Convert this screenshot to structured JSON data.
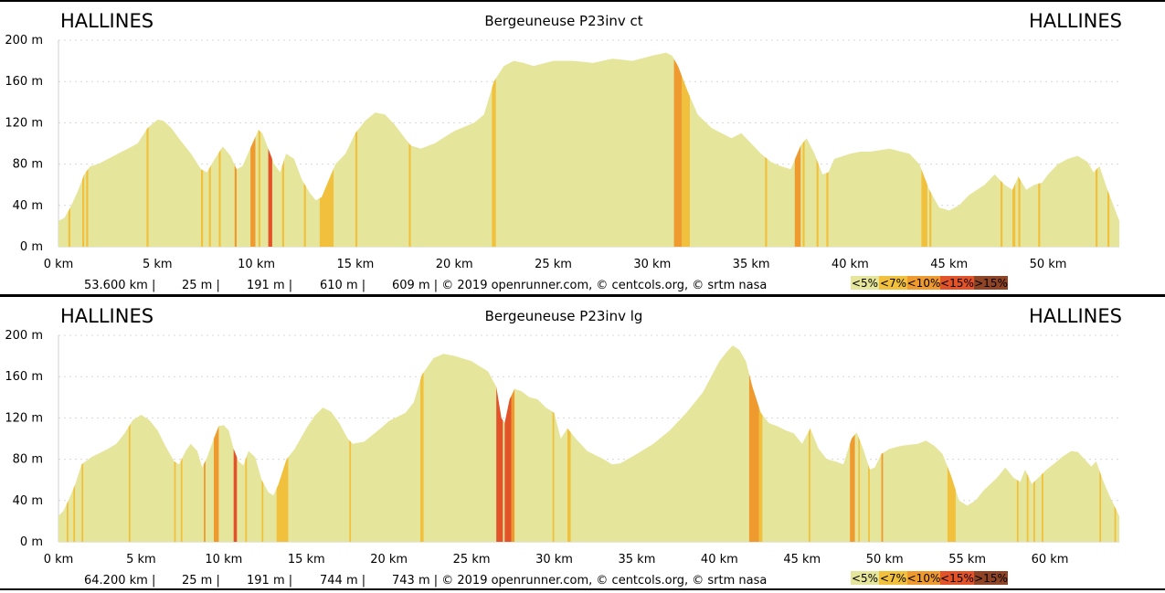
{
  "colors": {
    "lt5": "#e5e59b",
    "lt7": "#f1c13d",
    "lt10": "#ef9a2e",
    "lt15": "#e2532a",
    "gt15": "#8e4425",
    "grid": "#d8d8d8"
  },
  "chart_data": [
    {
      "type": "area",
      "title": "Bergeuneuse P23inv ct",
      "start_label": "HALLINES",
      "end_label": "HALLINES",
      "ylim": [
        0,
        200
      ],
      "xlim": [
        0,
        53.6
      ],
      "y_ticks": [
        "0 m",
        "40 m",
        "80 m",
        "120 m",
        "160 m",
        "200 m"
      ],
      "y_tick_values": [
        0,
        40,
        80,
        120,
        160,
        200
      ],
      "x_ticks": [
        "0 km",
        "5 km",
        "10 km",
        "15 km",
        "20 km",
        "25 km",
        "30 km",
        "35 km",
        "40 km",
        "45 km",
        "50 km"
      ],
      "x_tick_values": [
        0,
        5,
        10,
        15,
        20,
        25,
        30,
        35,
        40,
        45,
        50
      ],
      "grid": true,
      "stats": [
        "53.600 km |",
        "25 m |",
        "191 m |",
        "610 m |",
        "609 m | © 2019 openrunner.com, © centcols.org, © srtm nasa"
      ],
      "legend": [
        "<5%",
        "<7%",
        "<10%",
        "<15%",
        ">15%"
      ],
      "profile": [
        [
          0,
          25
        ],
        [
          0.3,
          28
        ],
        [
          0.6,
          38
        ],
        [
          1.0,
          55
        ],
        [
          1.3,
          70
        ],
        [
          1.6,
          78
        ],
        [
          2.0,
          80
        ],
        [
          2.5,
          85
        ],
        [
          3.0,
          90
        ],
        [
          3.5,
          95
        ],
        [
          4.0,
          100
        ],
        [
          4.5,
          115
        ],
        [
          5.0,
          123
        ],
        [
          5.3,
          122
        ],
        [
          5.7,
          115
        ],
        [
          6.2,
          102
        ],
        [
          6.7,
          90
        ],
        [
          7.2,
          75
        ],
        [
          7.5,
          72
        ],
        [
          7.8,
          82
        ],
        [
          8.3,
          97
        ],
        [
          8.7,
          88
        ],
        [
          9.0,
          75
        ],
        [
          9.3,
          78
        ],
        [
          9.8,
          100
        ],
        [
          10.1,
          113
        ],
        [
          10.3,
          110
        ],
        [
          10.6,
          95
        ],
        [
          10.9,
          80
        ],
        [
          11.2,
          72
        ],
        [
          11.5,
          90
        ],
        [
          11.9,
          85
        ],
        [
          12.3,
          65
        ],
        [
          12.7,
          52
        ],
        [
          13.0,
          45
        ],
        [
          13.3,
          48
        ],
        [
          13.6,
          62
        ],
        [
          14.0,
          80
        ],
        [
          14.5,
          90
        ],
        [
          15.0,
          110
        ],
        [
          15.5,
          122
        ],
        [
          16.0,
          130
        ],
        [
          16.5,
          128
        ],
        [
          17.0,
          118
        ],
        [
          17.5,
          105
        ],
        [
          17.8,
          98
        ],
        [
          18.3,
          95
        ],
        [
          19.0,
          100
        ],
        [
          20.0,
          112
        ],
        [
          21.0,
          120
        ],
        [
          21.5,
          128
        ],
        [
          22.0,
          160
        ],
        [
          22.5,
          175
        ],
        [
          23.0,
          180
        ],
        [
          23.5,
          178
        ],
        [
          24.0,
          175
        ],
        [
          25.0,
          180
        ],
        [
          26.0,
          180
        ],
        [
          27.0,
          178
        ],
        [
          28.0,
          182
        ],
        [
          29.0,
          180
        ],
        [
          30.0,
          185
        ],
        [
          30.7,
          188
        ],
        [
          31.0,
          185
        ],
        [
          31.3,
          175
        ],
        [
          31.8,
          150
        ],
        [
          32.3,
          128
        ],
        [
          33.0,
          115
        ],
        [
          33.5,
          110
        ],
        [
          34.0,
          105
        ],
        [
          34.5,
          110
        ],
        [
          35.0,
          100
        ],
        [
          35.5,
          90
        ],
        [
          36.0,
          82
        ],
        [
          36.5,
          78
        ],
        [
          37.0,
          75
        ],
        [
          37.5,
          98
        ],
        [
          37.8,
          105
        ],
        [
          38.2,
          90
        ],
        [
          38.6,
          70
        ],
        [
          38.9,
          72
        ],
        [
          39.2,
          85
        ],
        [
          40.0,
          90
        ],
        [
          40.5,
          92
        ],
        [
          41.0,
          92
        ],
        [
          42.0,
          95
        ],
        [
          43.0,
          90
        ],
        [
          43.5,
          80
        ],
        [
          44.0,
          55
        ],
        [
          44.5,
          38
        ],
        [
          45.0,
          35
        ],
        [
          45.5,
          40
        ],
        [
          46.0,
          50
        ],
        [
          46.8,
          60
        ],
        [
          47.3,
          70
        ],
        [
          47.8,
          60
        ],
        [
          48.2,
          55
        ],
        [
          48.5,
          68
        ],
        [
          48.9,
          55
        ],
        [
          49.3,
          60
        ],
        [
          49.7,
          62
        ],
        [
          50.0,
          70
        ],
        [
          50.5,
          80
        ],
        [
          51.0,
          85
        ],
        [
          51.5,
          88
        ],
        [
          52.0,
          82
        ],
        [
          52.3,
          72
        ],
        [
          52.6,
          78
        ],
        [
          53.0,
          55
        ],
        [
          53.3,
          40
        ],
        [
          53.6,
          25
        ]
      ],
      "bands": [
        [
          0.5,
          0.6,
          "lt7"
        ],
        [
          1.2,
          1.3,
          "lt7"
        ],
        [
          1.4,
          1.5,
          "lt7"
        ],
        [
          4.45,
          4.55,
          "lt7"
        ],
        [
          7.2,
          7.3,
          "lt7"
        ],
        [
          7.6,
          7.7,
          "lt7"
        ],
        [
          8.1,
          8.2,
          "lt7"
        ],
        [
          8.9,
          9.0,
          "lt10"
        ],
        [
          9.7,
          9.95,
          "lt10"
        ],
        [
          10.1,
          10.2,
          "lt7"
        ],
        [
          10.6,
          10.8,
          "lt15"
        ],
        [
          11.3,
          11.4,
          "lt7"
        ],
        [
          12.4,
          12.5,
          "lt7"
        ],
        [
          13.2,
          13.9,
          "lt7"
        ],
        [
          15.0,
          15.1,
          "lt7"
        ],
        [
          17.7,
          17.8,
          "lt7"
        ],
        [
          21.9,
          22.1,
          "lt7"
        ],
        [
          31.1,
          31.5,
          "lt10"
        ],
        [
          31.5,
          31.9,
          "lt7"
        ],
        [
          35.7,
          35.8,
          "lt7"
        ],
        [
          37.2,
          37.5,
          "lt10"
        ],
        [
          37.6,
          37.7,
          "lt7"
        ],
        [
          38.3,
          38.4,
          "lt7"
        ],
        [
          38.8,
          38.9,
          "lt7"
        ],
        [
          43.6,
          43.9,
          "lt7"
        ],
        [
          44.0,
          44.1,
          "lt7"
        ],
        [
          47.6,
          47.7,
          "lt7"
        ],
        [
          48.2,
          48.35,
          "lt7"
        ],
        [
          48.5,
          48.6,
          "lt7"
        ],
        [
          49.5,
          49.6,
          "lt7"
        ],
        [
          52.4,
          52.5,
          "lt7"
        ],
        [
          53.0,
          53.1,
          "lt7"
        ]
      ]
    },
    {
      "type": "area",
      "title": "Bergeuneuse P23inv lg",
      "start_label": "HALLINES",
      "end_label": "HALLINES",
      "ylim": [
        0,
        200
      ],
      "xlim": [
        0,
        64.2
      ],
      "y_ticks": [
        "0 m",
        "40 m",
        "80 m",
        "120 m",
        "160 m",
        "200 m"
      ],
      "y_tick_values": [
        0,
        40,
        80,
        120,
        160,
        200
      ],
      "x_ticks": [
        "0 km",
        "5 km",
        "10 km",
        "15 km",
        "20 km",
        "25 km",
        "30 km",
        "35 km",
        "40 km",
        "45 km",
        "50 km",
        "55 km",
        "60 km"
      ],
      "x_tick_values": [
        0,
        5,
        10,
        15,
        20,
        25,
        30,
        35,
        40,
        45,
        50,
        55,
        60
      ],
      "grid": true,
      "stats": [
        "64.200 km |",
        "25 m |",
        "191 m |",
        "744 m |",
        "743 m | © 2019 openrunner.com, © centcols.org, © srtm nasa"
      ],
      "legend": [
        "<5%",
        "<7%",
        "<10%",
        "<15%",
        ">15%"
      ],
      "profile": [
        [
          0,
          25
        ],
        [
          0.3,
          30
        ],
        [
          0.6,
          40
        ],
        [
          1.0,
          55
        ],
        [
          1.4,
          75
        ],
        [
          2.0,
          82
        ],
        [
          2.5,
          86
        ],
        [
          3.0,
          90
        ],
        [
          3.5,
          95
        ],
        [
          4.0,
          105
        ],
        [
          4.5,
          118
        ],
        [
          5.0,
          123
        ],
        [
          5.5,
          118
        ],
        [
          6.0,
          108
        ],
        [
          6.5,
          92
        ],
        [
          7.0,
          78
        ],
        [
          7.3,
          75
        ],
        [
          7.7,
          88
        ],
        [
          8.0,
          95
        ],
        [
          8.4,
          88
        ],
        [
          8.7,
          72
        ],
        [
          9.0,
          82
        ],
        [
          9.4,
          100
        ],
        [
          9.7,
          112
        ],
        [
          10.0,
          113
        ],
        [
          10.3,
          108
        ],
        [
          10.6,
          90
        ],
        [
          10.9,
          78
        ],
        [
          11.2,
          74
        ],
        [
          11.5,
          88
        ],
        [
          11.9,
          82
        ],
        [
          12.3,
          60
        ],
        [
          12.7,
          48
        ],
        [
          13.0,
          45
        ],
        [
          13.3,
          55
        ],
        [
          13.8,
          80
        ],
        [
          14.3,
          90
        ],
        [
          15.0,
          110
        ],
        [
          15.5,
          122
        ],
        [
          16.0,
          130
        ],
        [
          16.5,
          126
        ],
        [
          17.0,
          115
        ],
        [
          17.5,
          100
        ],
        [
          17.8,
          95
        ],
        [
          18.5,
          97
        ],
        [
          19.5,
          110
        ],
        [
          20.0,
          117
        ],
        [
          21.0,
          125
        ],
        [
          21.5,
          135
        ],
        [
          22.0,
          162
        ],
        [
          22.7,
          178
        ],
        [
          23.3,
          182
        ],
        [
          24.0,
          180
        ],
        [
          25.0,
          175
        ],
        [
          26.0,
          165
        ],
        [
          26.5,
          150
        ],
        [
          26.8,
          120
        ],
        [
          27.0,
          115
        ],
        [
          27.3,
          138
        ],
        [
          27.6,
          148
        ],
        [
          28.0,
          146
        ],
        [
          28.5,
          140
        ],
        [
          29.0,
          138
        ],
        [
          29.5,
          130
        ],
        [
          30.0,
          125
        ],
        [
          30.4,
          100
        ],
        [
          30.8,
          110
        ],
        [
          31.3,
          100
        ],
        [
          32.0,
          88
        ],
        [
          33.0,
          80
        ],
        [
          33.5,
          75
        ],
        [
          34.0,
          76
        ],
        [
          35.0,
          85
        ],
        [
          36.0,
          95
        ],
        [
          37.0,
          108
        ],
        [
          38.0,
          125
        ],
        [
          39.0,
          145
        ],
        [
          39.5,
          160
        ],
        [
          40.0,
          175
        ],
        [
          40.5,
          185
        ],
        [
          40.8,
          190
        ],
        [
          41.2,
          186
        ],
        [
          41.6,
          175
        ],
        [
          42.0,
          150
        ],
        [
          42.5,
          125
        ],
        [
          43.0,
          115
        ],
        [
          43.5,
          112
        ],
        [
          44.0,
          108
        ],
        [
          44.5,
          105
        ],
        [
          45.0,
          95
        ],
        [
          45.5,
          110
        ],
        [
          46.0,
          90
        ],
        [
          46.5,
          80
        ],
        [
          47.0,
          78
        ],
        [
          47.5,
          75
        ],
        [
          48.0,
          100
        ],
        [
          48.3,
          106
        ],
        [
          48.7,
          90
        ],
        [
          49.1,
          70
        ],
        [
          49.4,
          72
        ],
        [
          49.8,
          85
        ],
        [
          50.3,
          90
        ],
        [
          51.0,
          93
        ],
        [
          52.0,
          95
        ],
        [
          52.5,
          98
        ],
        [
          53.0,
          93
        ],
        [
          53.5,
          85
        ],
        [
          54.0,
          65
        ],
        [
          54.5,
          40
        ],
        [
          55.0,
          35
        ],
        [
          55.5,
          40
        ],
        [
          56.0,
          50
        ],
        [
          56.8,
          62
        ],
        [
          57.3,
          72
        ],
        [
          57.8,
          62
        ],
        [
          58.2,
          58
        ],
        [
          58.5,
          70
        ],
        [
          58.9,
          56
        ],
        [
          59.3,
          62
        ],
        [
          59.8,
          70
        ],
        [
          60.2,
          75
        ],
        [
          60.8,
          83
        ],
        [
          61.3,
          88
        ],
        [
          61.7,
          87
        ],
        [
          62.1,
          80
        ],
        [
          62.5,
          73
        ],
        [
          62.8,
          78
        ],
        [
          63.2,
          60
        ],
        [
          63.6,
          45
        ],
        [
          64.2,
          25
        ]
      ],
      "bands": [
        [
          0.5,
          0.6,
          "lt7"
        ],
        [
          0.9,
          1.0,
          "lt7"
        ],
        [
          1.4,
          1.5,
          "lt7"
        ],
        [
          4.25,
          4.35,
          "lt7"
        ],
        [
          7.0,
          7.1,
          "lt7"
        ],
        [
          7.4,
          7.5,
          "lt7"
        ],
        [
          8.8,
          8.9,
          "lt10"
        ],
        [
          9.4,
          9.7,
          "lt10"
        ],
        [
          10.6,
          10.8,
          "lt15"
        ],
        [
          11.3,
          11.4,
          "lt7"
        ],
        [
          12.3,
          12.4,
          "lt7"
        ],
        [
          13.2,
          13.9,
          "lt7"
        ],
        [
          17.6,
          17.7,
          "lt7"
        ],
        [
          21.9,
          22.1,
          "lt7"
        ],
        [
          26.5,
          26.9,
          "lt15"
        ],
        [
          27.0,
          27.4,
          "lt15"
        ],
        [
          27.4,
          27.6,
          "lt10"
        ],
        [
          29.9,
          30.0,
          "lt7"
        ],
        [
          30.8,
          31.0,
          "lt7"
        ],
        [
          41.8,
          42.4,
          "lt10"
        ],
        [
          42.4,
          42.6,
          "lt7"
        ],
        [
          45.4,
          45.5,
          "lt7"
        ],
        [
          47.9,
          48.2,
          "lt10"
        ],
        [
          48.4,
          48.5,
          "lt7"
        ],
        [
          49.0,
          49.1,
          "lt7"
        ],
        [
          49.8,
          49.9,
          "lt10"
        ],
        [
          53.8,
          54.3,
          "lt7"
        ],
        [
          58.0,
          58.1,
          "lt7"
        ],
        [
          58.6,
          58.7,
          "lt7"
        ],
        [
          59.0,
          59.1,
          "lt7"
        ],
        [
          59.5,
          59.6,
          "lt7"
        ],
        [
          63.0,
          63.1,
          "lt7"
        ],
        [
          63.9,
          64.0,
          "lt7"
        ]
      ]
    }
  ]
}
